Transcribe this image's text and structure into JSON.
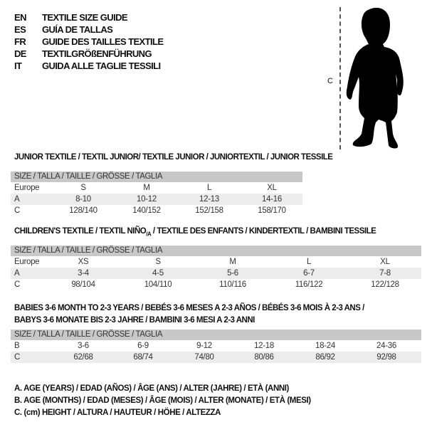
{
  "languages": [
    {
      "code": "EN",
      "text": "TEXTILE SIZE GUIDE"
    },
    {
      "code": "ES",
      "text": "GUÍA DE TALLAS"
    },
    {
      "code": "FR",
      "text": "GUIDE DES TAILLES TEXTILE"
    },
    {
      "code": "DE",
      "text": "TEXTILGRÖßENFÜHRUNG"
    },
    {
      "code": "IT",
      "text": "GUIDA ALLE TAGLIE TESSILI"
    }
  ],
  "figure": {
    "measure_label": "C"
  },
  "junior": {
    "title": "JUNIOR TEXTILE / TEXTIL JUNIOR/ TEXTILE JUNIOR / JUNIORTEXTIL / JUNIOR TESSILE",
    "header": "SIZE / TALLA / TAILLE / GRÖSSE / TAGLIA",
    "rows": [
      {
        "label": "Europe",
        "values": [
          "S",
          "M",
          "L",
          "XL"
        ]
      },
      {
        "label": "A",
        "values": [
          "8-10",
          "10-12",
          "12-13",
          "14-16"
        ]
      },
      {
        "label": "C",
        "values": [
          "128/140",
          "140/152",
          "152/158",
          "158/170"
        ]
      }
    ]
  },
  "children": {
    "title_pre": "CHILDREN'S TEXTILE / TEXTIL NIÑO",
    "title_sub": "/A",
    "title_post": " / TEXTILE DES ENFANTS / KINDERTEXTIL / BAMBINI TESSILE",
    "header": "SIZE / TALLA / TAILLE / GRÖSSE / TAGLIA",
    "rows": [
      {
        "label": "Europe",
        "values": [
          "XS",
          "S",
          "M",
          "L",
          "XL"
        ]
      },
      {
        "label": "A",
        "values": [
          "3-4",
          "4-5",
          "5-6",
          "6-7",
          "7-8"
        ]
      },
      {
        "label": "C",
        "values": [
          "98/104",
          "104/110",
          "110/116",
          "116/122",
          "122/128"
        ]
      }
    ]
  },
  "babies": {
    "title_line1": "BABIES 3-6 MONTH TO 2-3 YEARS / BEBÉS 3-6 MESES A 2-3 AÑOS / BÉBÉS 3-6 MOIS À 2-3 ANS /",
    "title_line2": "BABYS 3-6 MONATE BIS 2-3 JAHRE / BAMBINI 3-6 MESI A 2-3 ANNI",
    "header": "SIZE / TALLA / TAILLE / GRÖSSE / TAGLIA",
    "rows": [
      {
        "label": "B",
        "values": [
          "3-6",
          "6-9",
          "9-12",
          "12-18",
          "18-24",
          "24-36"
        ]
      },
      {
        "label": "C",
        "values": [
          "62/68",
          "68/74",
          "74/80",
          "80/86",
          "86/92",
          "92/98"
        ]
      }
    ]
  },
  "legend": [
    "A. AGE (YEARS) / EDAD (AÑOS) / ÂGE (ANS) / ALTER (JAHRE) / ETÀ (ANNI)",
    "B. AGE (MONTHS) / EDAD (MESES) / ÂGE (MOIS) / ALTER (MONATE) / ETÀ (MESI)",
    "C. (cm) HEIGHT / ALTURA / HAUTEUR / HÖHE / ALTEZZA"
  ]
}
